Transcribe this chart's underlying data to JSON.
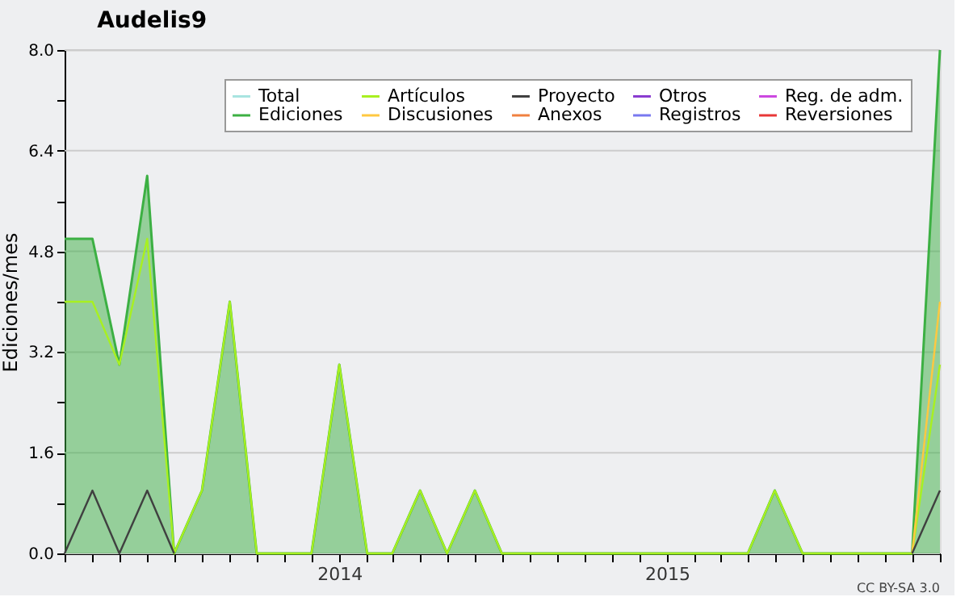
{
  "chart_data": {
    "type": "line",
    "title": "Audelis9",
    "ylabel": "Ediciones/mes",
    "x": [
      "2013-03",
      "2013-04",
      "2013-05",
      "2013-06",
      "2013-07",
      "2013-08",
      "2013-09",
      "2013-10",
      "2013-11",
      "2013-12",
      "2014-01",
      "2014-02",
      "2014-03",
      "2014-04",
      "2014-05",
      "2014-06",
      "2014-07",
      "2014-08",
      "2014-09",
      "2014-10",
      "2014-11",
      "2014-12",
      "2015-01",
      "2015-02",
      "2015-03",
      "2015-04",
      "2015-05",
      "2015-06",
      "2015-07",
      "2015-08",
      "2015-09",
      "2015-10",
      "2015-11"
    ],
    "series": [
      {
        "name": "Total",
        "color": "#a8e4e0",
        "values": [
          null,
          null,
          null,
          null,
          null,
          null,
          null,
          null,
          null,
          null,
          null,
          null,
          null,
          null,
          null,
          null,
          null,
          null,
          null,
          null,
          null,
          null,
          null,
          null,
          null,
          null,
          null,
          null,
          null,
          null,
          null,
          null,
          null
        ]
      },
      {
        "name": "Ediciones",
        "type": "area",
        "color": "#3cb043",
        "values": [
          5,
          5,
          3,
          6,
          0,
          1,
          4,
          0,
          0,
          0,
          3,
          0,
          0,
          1,
          0,
          1,
          0,
          0,
          0,
          0,
          0,
          0,
          0,
          0,
          0,
          0,
          1,
          0,
          0,
          0,
          0,
          0,
          8
        ]
      },
      {
        "name": "Artículos",
        "color": "#a8f020",
        "values": [
          4,
          4,
          3,
          5,
          0,
          1,
          4,
          0,
          0,
          0,
          3,
          0,
          0,
          1,
          0,
          1,
          0,
          0,
          0,
          0,
          0,
          0,
          0,
          0,
          0,
          0,
          1,
          0,
          0,
          0,
          0,
          0,
          3
        ]
      },
      {
        "name": "Discusiones",
        "color": "#ffc840",
        "values": [
          null,
          null,
          null,
          null,
          null,
          null,
          null,
          null,
          null,
          null,
          null,
          null,
          null,
          null,
          null,
          null,
          null,
          null,
          null,
          null,
          null,
          null,
          null,
          null,
          null,
          null,
          null,
          null,
          null,
          null,
          null,
          0,
          4
        ]
      },
      {
        "name": "Proyecto",
        "color": "#404040",
        "values": [
          0,
          1,
          0,
          1,
          0,
          null,
          null,
          null,
          null,
          null,
          null,
          null,
          null,
          null,
          null,
          null,
          null,
          null,
          null,
          null,
          null,
          null,
          null,
          null,
          null,
          null,
          null,
          null,
          null,
          null,
          null,
          0,
          1
        ]
      },
      {
        "name": "Anexos",
        "color": "#f08040",
        "values": [
          null,
          null,
          null,
          null,
          null,
          null,
          null,
          null,
          null,
          null,
          null,
          null,
          null,
          null,
          null,
          null,
          null,
          null,
          null,
          null,
          null,
          null,
          null,
          null,
          null,
          null,
          null,
          null,
          null,
          null,
          null,
          null,
          null
        ]
      },
      {
        "name": "Otros",
        "color": "#8a3cd0",
        "values": [
          null,
          null,
          null,
          null,
          null,
          null,
          null,
          null,
          null,
          null,
          null,
          null,
          null,
          null,
          null,
          null,
          null,
          null,
          null,
          null,
          null,
          null,
          null,
          null,
          null,
          null,
          null,
          null,
          null,
          null,
          null,
          null,
          null
        ]
      },
      {
        "name": "Registros",
        "color": "#7878f0",
        "values": [
          null,
          null,
          null,
          null,
          null,
          null,
          null,
          null,
          null,
          null,
          null,
          null,
          null,
          null,
          null,
          null,
          null,
          null,
          null,
          null,
          null,
          null,
          null,
          null,
          null,
          null,
          null,
          null,
          null,
          null,
          null,
          null,
          null
        ]
      },
      {
        "name": "Reg. de adm.",
        "color": "#cc48e0",
        "values": [
          null,
          null,
          null,
          null,
          null,
          null,
          null,
          null,
          null,
          null,
          null,
          null,
          null,
          null,
          null,
          null,
          null,
          null,
          null,
          null,
          null,
          null,
          null,
          null,
          null,
          null,
          null,
          null,
          null,
          null,
          null,
          null,
          null
        ]
      },
      {
        "name": "Reversiones",
        "color": "#e83838",
        "values": [
          null,
          null,
          null,
          null,
          null,
          null,
          null,
          null,
          null,
          null,
          null,
          null,
          null,
          null,
          null,
          null,
          null,
          null,
          null,
          null,
          null,
          null,
          null,
          null,
          null,
          null,
          null,
          null,
          null,
          null,
          null,
          null,
          null
        ]
      }
    ],
    "ylim": [
      0,
      8
    ],
    "yticks": [
      {
        "value": 0,
        "label": "0.0"
      },
      {
        "value": 0.8,
        "label": null
      },
      {
        "value": 1.6,
        "label": "1.6"
      },
      {
        "value": 2.4,
        "label": null
      },
      {
        "value": 3.2,
        "label": "3.2"
      },
      {
        "value": 4,
        "label": null
      },
      {
        "value": 4.8,
        "label": "4.8"
      },
      {
        "value": 5.6,
        "label": null
      },
      {
        "value": 6.4,
        "label": "6.4"
      },
      {
        "value": 7.2,
        "label": null
      },
      {
        "value": 8,
        "label": "8.0"
      }
    ],
    "xlim": [
      "2013-03",
      "2015-11"
    ],
    "xticks": [
      {
        "value": "2013-03",
        "label": null
      },
      {
        "value": "2013-04",
        "label": null
      },
      {
        "value": "2013-05",
        "label": null
      },
      {
        "value": "2013-06",
        "label": null
      },
      {
        "value": "2013-07",
        "label": null
      },
      {
        "value": "2013-08",
        "label": null
      },
      {
        "value": "2013-09",
        "label": null
      },
      {
        "value": "2013-10",
        "label": null
      },
      {
        "value": "2013-11",
        "label": null
      },
      {
        "value": "2013-12",
        "label": null
      },
      {
        "value": "2014-01",
        "label": "2014"
      },
      {
        "value": "2014-02",
        "label": null
      },
      {
        "value": "2014-03",
        "label": null
      },
      {
        "value": "2014-04",
        "label": null
      },
      {
        "value": "2014-05",
        "label": null
      },
      {
        "value": "2014-06",
        "label": null
      },
      {
        "value": "2014-07",
        "label": null
      },
      {
        "value": "2014-08",
        "label": null
      },
      {
        "value": "2014-09",
        "label": null
      },
      {
        "value": "2014-10",
        "label": null
      },
      {
        "value": "2014-11",
        "label": null
      },
      {
        "value": "2014-12",
        "label": null
      },
      {
        "value": "2015-01",
        "label": "2015"
      },
      {
        "value": "2015-02",
        "label": null
      },
      {
        "value": "2015-03",
        "label": null
      },
      {
        "value": "2015-04",
        "label": null
      },
      {
        "value": "2015-05",
        "label": null
      },
      {
        "value": "2015-06",
        "label": null
      },
      {
        "value": "2015-07",
        "label": null
      },
      {
        "value": "2015-08",
        "label": null
      },
      {
        "value": "2015-09",
        "label": null
      },
      {
        "value": "2015-10",
        "label": null
      },
      {
        "value": "2015-11",
        "label": null
      }
    ],
    "grid": "y",
    "legend": "top right",
    "marker": "none",
    "line_style": "solid",
    "annotations": [
      "CC BY-SA 3.0"
    ]
  }
}
